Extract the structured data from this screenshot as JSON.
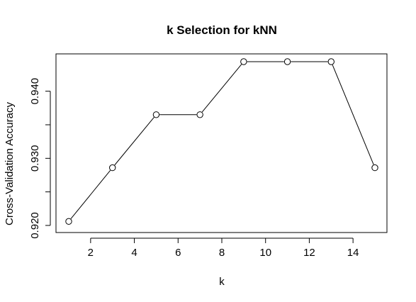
{
  "chart_data": {
    "type": "line",
    "title": "k Selection for kNN",
    "xlabel": "k",
    "ylabel": "Cross-Validation Accuracy",
    "x": [
      1,
      3,
      5,
      7,
      9,
      11,
      13,
      15
    ],
    "series": [
      {
        "values": [
          0.9206,
          0.9286,
          0.9365,
          0.9365,
          0.9444,
          0.9444,
          0.9444,
          0.9286
        ],
        "marker": "open-circle",
        "color": "#000000"
      }
    ],
    "xlim": [
      1,
      15
    ],
    "ylim": [
      0.92,
      0.9444
    ],
    "x_ticks": [
      "2",
      "4",
      "6",
      "8",
      "10",
      "12",
      "14"
    ],
    "y_ticks": [
      "0.920",
      "0.930",
      "0.940"
    ],
    "grid": false,
    "legend": "none"
  }
}
